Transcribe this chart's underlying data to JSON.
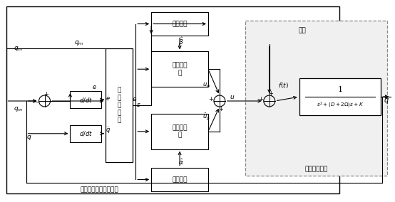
{
  "bg_color": "#ffffff",
  "outer_box_label": "自适应模糊滑模控制器",
  "dashed_box_label": "微陀螺仪系统",
  "disturbance_label": "干扰",
  "integrator_label": "积\n分\n滑\n模\n面",
  "adaptive1_label": "自适应律",
  "switching_label": "切换控制\n器",
  "fuzzy_label": "模糊控制\n器",
  "adaptive2_label": "自适应律",
  "plant_num": "1",
  "plant_den": "$s^2+(D+2\\Omega)s+K$",
  "ddt_label": "$d/dt$"
}
